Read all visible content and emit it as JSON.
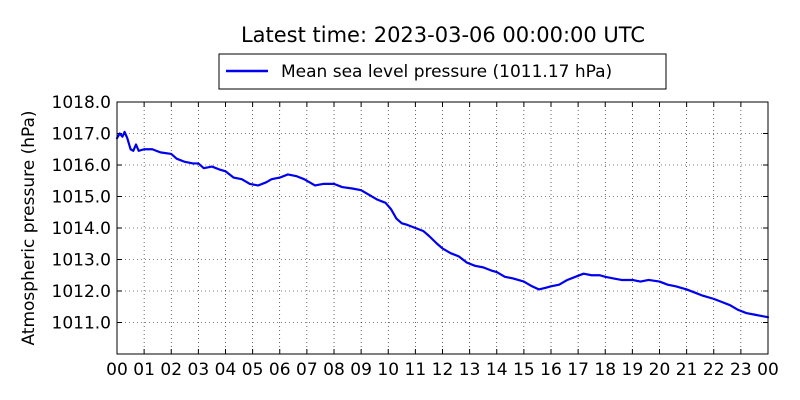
{
  "chart_data": {
    "type": "line",
    "title": "Latest time: 2023-03-06 00:00:00 UTC",
    "ylabel": "Atmospheric pressure (hPa)",
    "xlabel": "",
    "ylim": [
      1010.0,
      1018.0
    ],
    "xlim": [
      0,
      24
    ],
    "yticks": [
      1011.0,
      1012.0,
      1013.0,
      1014.0,
      1015.0,
      1016.0,
      1017.0,
      1018.0
    ],
    "ytick_labels": [
      "1011.0",
      "1012.0",
      "1013.0",
      "1014.0",
      "1015.0",
      "1016.0",
      "1017.0",
      "1018.0"
    ],
    "xticks": [
      0,
      1,
      2,
      3,
      4,
      5,
      6,
      7,
      8,
      9,
      10,
      11,
      12,
      13,
      14,
      15,
      16,
      17,
      18,
      19,
      20,
      21,
      22,
      23,
      24
    ],
    "xtick_labels": [
      "00",
      "01",
      "02",
      "03",
      "04",
      "05",
      "06",
      "07",
      "08",
      "09",
      "10",
      "11",
      "12",
      "13",
      "14",
      "15",
      "16",
      "17",
      "18",
      "19",
      "20",
      "21",
      "22",
      "23",
      "00"
    ],
    "grid": true,
    "legend": {
      "placement": "top-center",
      "entries": [
        "Mean sea level pressure (1011.17 hPa)"
      ]
    },
    "series": [
      {
        "name": "Mean sea level pressure (1011.17 hPa)",
        "color": "#0000ee",
        "points": [
          [
            0.0,
            1016.85
          ],
          [
            0.1,
            1017.0
          ],
          [
            0.2,
            1016.9
          ],
          [
            0.28,
            1017.05
          ],
          [
            0.38,
            1016.85
          ],
          [
            0.5,
            1016.5
          ],
          [
            0.6,
            1016.45
          ],
          [
            0.7,
            1016.65
          ],
          [
            0.8,
            1016.45
          ],
          [
            1.0,
            1016.5
          ],
          [
            1.3,
            1016.5
          ],
          [
            1.6,
            1016.4
          ],
          [
            2.0,
            1016.35
          ],
          [
            2.2,
            1016.2
          ],
          [
            2.5,
            1016.1
          ],
          [
            2.8,
            1016.05
          ],
          [
            3.0,
            1016.05
          ],
          [
            3.2,
            1015.9
          ],
          [
            3.5,
            1015.95
          ],
          [
            3.8,
            1015.85
          ],
          [
            4.0,
            1015.8
          ],
          [
            4.3,
            1015.6
          ],
          [
            4.6,
            1015.55
          ],
          [
            4.9,
            1015.4
          ],
          [
            5.2,
            1015.35
          ],
          [
            5.5,
            1015.45
          ],
          [
            5.7,
            1015.55
          ],
          [
            6.0,
            1015.6
          ],
          [
            6.3,
            1015.7
          ],
          [
            6.6,
            1015.65
          ],
          [
            6.9,
            1015.55
          ],
          [
            7.1,
            1015.45
          ],
          [
            7.3,
            1015.35
          ],
          [
            7.6,
            1015.4
          ],
          [
            8.0,
            1015.4
          ],
          [
            8.3,
            1015.3
          ],
          [
            8.7,
            1015.25
          ],
          [
            9.0,
            1015.2
          ],
          [
            9.3,
            1015.05
          ],
          [
            9.6,
            1014.9
          ],
          [
            9.9,
            1014.8
          ],
          [
            10.1,
            1014.6
          ],
          [
            10.3,
            1014.3
          ],
          [
            10.5,
            1014.15
          ],
          [
            10.7,
            1014.1
          ],
          [
            11.0,
            1014.0
          ],
          [
            11.3,
            1013.9
          ],
          [
            11.5,
            1013.75
          ],
          [
            11.8,
            1013.5
          ],
          [
            12.0,
            1013.35
          ],
          [
            12.3,
            1013.2
          ],
          [
            12.6,
            1013.1
          ],
          [
            12.9,
            1012.9
          ],
          [
            13.2,
            1012.8
          ],
          [
            13.5,
            1012.75
          ],
          [
            13.8,
            1012.65
          ],
          [
            14.0,
            1012.6
          ],
          [
            14.3,
            1012.45
          ],
          [
            14.6,
            1012.4
          ],
          [
            15.0,
            1012.3
          ],
          [
            15.3,
            1012.15
          ],
          [
            15.55,
            1012.05
          ],
          [
            15.8,
            1012.1
          ],
          [
            16.0,
            1012.15
          ],
          [
            16.3,
            1012.2
          ],
          [
            16.6,
            1012.35
          ],
          [
            16.9,
            1012.45
          ],
          [
            17.2,
            1012.55
          ],
          [
            17.5,
            1012.5
          ],
          [
            17.8,
            1012.5
          ],
          [
            18.0,
            1012.45
          ],
          [
            18.3,
            1012.4
          ],
          [
            18.6,
            1012.35
          ],
          [
            19.0,
            1012.35
          ],
          [
            19.3,
            1012.3
          ],
          [
            19.6,
            1012.35
          ],
          [
            20.0,
            1012.3
          ],
          [
            20.3,
            1012.2
          ],
          [
            20.6,
            1012.15
          ],
          [
            21.0,
            1012.05
          ],
          [
            21.3,
            1011.95
          ],
          [
            21.6,
            1011.85
          ],
          [
            22.0,
            1011.75
          ],
          [
            22.3,
            1011.65
          ],
          [
            22.6,
            1011.55
          ],
          [
            22.9,
            1011.4
          ],
          [
            23.2,
            1011.3
          ],
          [
            23.5,
            1011.25
          ],
          [
            23.8,
            1011.2
          ],
          [
            24.0,
            1011.17
          ]
        ]
      }
    ]
  }
}
